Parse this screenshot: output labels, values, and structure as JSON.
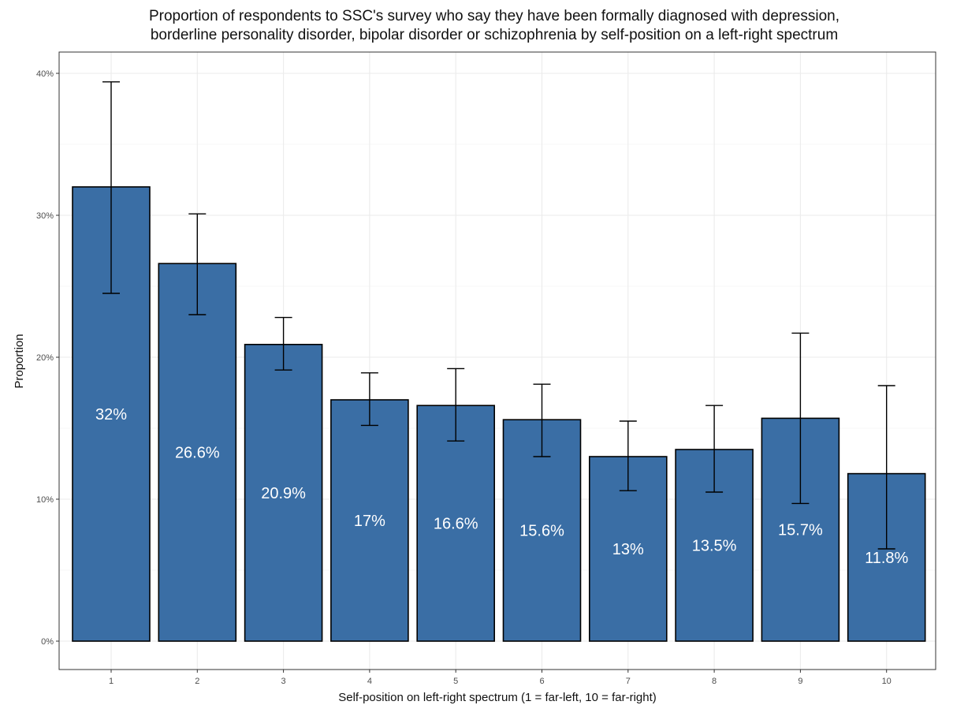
{
  "chart_data": {
    "type": "bar",
    "title": "Proportion of respondents to SSC's survey who say they have been formally diagnosed with depression, borderline personality disorder, bipolar disorder or schizophrenia by self-position on a left-right spectrum",
    "title_lines": [
      "Proportion of respondents to SSC's survey who say they have been formally diagnosed with depression,",
      "borderline personality disorder, bipolar disorder or schizophrenia by self-position on a left-right spectrum"
    ],
    "xlabel": "Self-position on left-right spectrum (1 = far-left, 10 = far-right)",
    "ylabel": "Proportion",
    "categories": [
      "1",
      "2",
      "3",
      "4",
      "5",
      "6",
      "7",
      "8",
      "9",
      "10"
    ],
    "values": [
      0.32,
      0.266,
      0.209,
      0.17,
      0.166,
      0.156,
      0.13,
      0.135,
      0.157,
      0.118
    ],
    "value_labels": [
      "32%",
      "26.6%",
      "20.9%",
      "17%",
      "16.6%",
      "15.6%",
      "13%",
      "13.5%",
      "15.7%",
      "11.8%"
    ],
    "error_low": [
      0.245,
      0.23,
      0.191,
      0.152,
      0.141,
      0.13,
      0.106,
      0.105,
      0.097,
      0.065
    ],
    "error_high": [
      0.394,
      0.301,
      0.228,
      0.189,
      0.192,
      0.181,
      0.155,
      0.166,
      0.217,
      0.18
    ],
    "ylim": [
      -0.02,
      0.415
    ],
    "yticks": [
      0,
      0.1,
      0.2,
      0.3,
      0.4
    ],
    "ytick_labels": [
      "0%",
      "10%",
      "20%",
      "30%",
      "40%"
    ],
    "grid": true,
    "bar_color": "#3a6ea5",
    "bar_edge_color": "#000000",
    "panel_border_color": "#333333",
    "grid_color": "#ebebeb"
  }
}
